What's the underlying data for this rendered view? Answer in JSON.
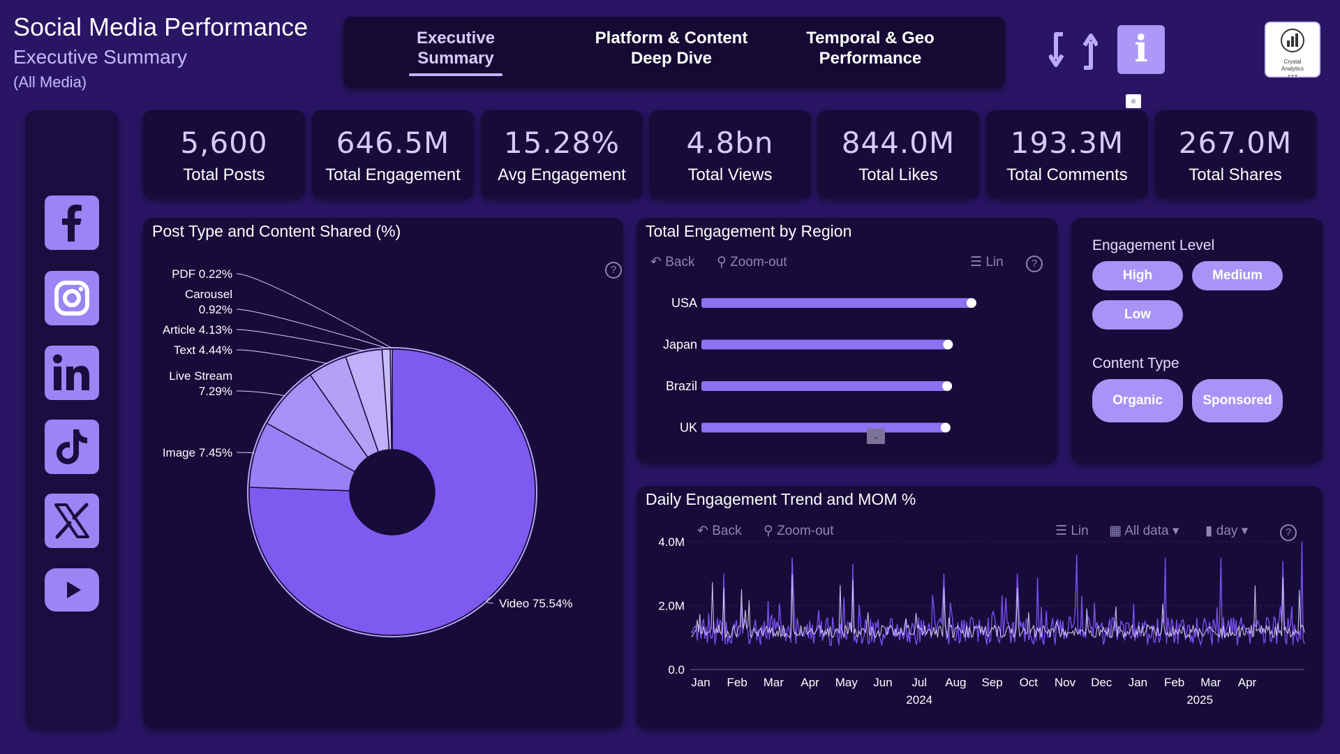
{
  "header": {
    "title": "Social Media Performance",
    "subtitle": "Executive Summary",
    "media_filter": "(All Media)"
  },
  "nav": {
    "tabs": [
      {
        "line1": "Executive",
        "line2": "Summary",
        "active": true
      },
      {
        "line1": "Platform & Content",
        "line2": "Deep Dive",
        "active": false
      },
      {
        "line1": "Temporal & Geo",
        "line2": "Performance",
        "active": false
      }
    ]
  },
  "buttons": {
    "info_label": "i",
    "filter_glyph": "≡"
  },
  "logo": {
    "line1": "Crystal",
    "line2": "Analytics",
    "dots": "• • •"
  },
  "sidebar": {
    "platforms": [
      "facebook-icon",
      "instagram-icon",
      "linkedin-icon",
      "tiktok-icon",
      "x-icon",
      "youtube-icon"
    ],
    "brand_color": "#9b85f5"
  },
  "kpis": [
    {
      "value": "5,600",
      "label": "Total Posts"
    },
    {
      "value": "646.5M",
      "label": "Total Engagement"
    },
    {
      "value": "15.28%",
      "label": "Avg Engagement"
    },
    {
      "value": "4.8bn",
      "label": "Total Views"
    },
    {
      "value": "844.0M",
      "label": "Total Likes"
    },
    {
      "value": "193.3M",
      "label": "Total Comments"
    },
    {
      "value": "267.0M",
      "label": "Total Shares"
    }
  ],
  "donut": {
    "title": "Post Type and Content Shared (%)",
    "help": "?"
  },
  "region": {
    "title": "Total Engagement by Region",
    "toolbar": {
      "back": "Back",
      "zoom": "Zoom-out",
      "lin": "Lin",
      "help": "?"
    }
  },
  "slicers": {
    "engagement_title": "Engagement Level",
    "engagement_options": [
      "High",
      "Medium",
      "Low"
    ],
    "content_title": "Content Type",
    "content_options": [
      "Organic",
      "Sponsored"
    ]
  },
  "trend": {
    "title": "Daily Engagement Trend and MOM %",
    "toolbar": {
      "back": "Back",
      "zoom": "Zoom-out",
      "lin": "Lin",
      "all_data": "All data",
      "day": "day",
      "help": "?"
    }
  },
  "chart_data": [
    {
      "type": "pie",
      "title": "Post Type and Content Shared (%)",
      "categories": [
        "Video",
        "Image",
        "Live Stream",
        "Text",
        "Article",
        "Carousel",
        "PDF"
      ],
      "values": [
        75.54,
        7.45,
        7.29,
        4.44,
        4.13,
        0.92,
        0.22
      ],
      "labels": [
        "Video 75.54%",
        "Image 7.45%",
        "Live Stream 7.29%",
        "Text 4.44%",
        "Article 4.13%",
        "Carousel 0.92%",
        "PDF 0.22%"
      ],
      "label_lines": [
        [
          "Video 75.54%"
        ],
        [
          "Image 7.45%"
        ],
        [
          "Live Stream",
          "7.29%"
        ],
        [
          "Text 4.44%"
        ],
        [
          "Article 4.13%"
        ],
        [
          "Carousel",
          "0.92%"
        ],
        [
          "PDF 0.22%"
        ]
      ],
      "colors": [
        "#7f5af0",
        "#9a80f5",
        "#a791f6",
        "#b3a1f8",
        "#bfb0f9",
        "#cabef9",
        "#d6ccfb"
      ],
      "donut": true
    },
    {
      "type": "bar",
      "title": "Total Engagement by Region",
      "orientation": "horizontal",
      "categories": [
        "USA",
        "Japan",
        "Brazil",
        "UK"
      ],
      "values": [
        100,
        91.3,
        91.0,
        90.4
      ],
      "value_unit": "relative (axis unlabeled)",
      "xlim": [
        0,
        100
      ]
    },
    {
      "type": "line",
      "title": "Daily Engagement Trend and MOM %",
      "ylabel": "",
      "ylim": [
        0,
        4000000
      ],
      "yticks": [
        0,
        2000000,
        4000000
      ],
      "ytick_labels": [
        "0.0",
        "2.0M",
        "4.0M"
      ],
      "x_month_labels": [
        "Jan",
        "Feb",
        "Mar",
        "Apr",
        "May",
        "Jun",
        "Jul",
        "Aug",
        "Sep",
        "Oct",
        "Nov",
        "Dec",
        "Jan",
        "Feb",
        "Mar",
        "Apr"
      ],
      "x_year_labels": [
        {
          "label": "2024",
          "month_index": 6
        },
        {
          "label": "2025",
          "month_index": 13.7
        }
      ],
      "series_mean": 1200000,
      "series_peaks": [
        {
          "day": 26,
          "value": 3000000
        },
        {
          "day": 80,
          "value": 3500000
        },
        {
          "day": 128,
          "value": 3300000
        },
        {
          "day": 200,
          "value": 3000000
        },
        {
          "day": 258,
          "value": 3000000
        },
        {
          "day": 305,
          "value": 3600000
        },
        {
          "day": 375,
          "value": 3500000
        },
        {
          "day": 419,
          "value": 3500000
        },
        {
          "day": 468,
          "value": 3400000
        },
        {
          "day": 483,
          "value": 4000000
        }
      ],
      "days": 486
    }
  ]
}
